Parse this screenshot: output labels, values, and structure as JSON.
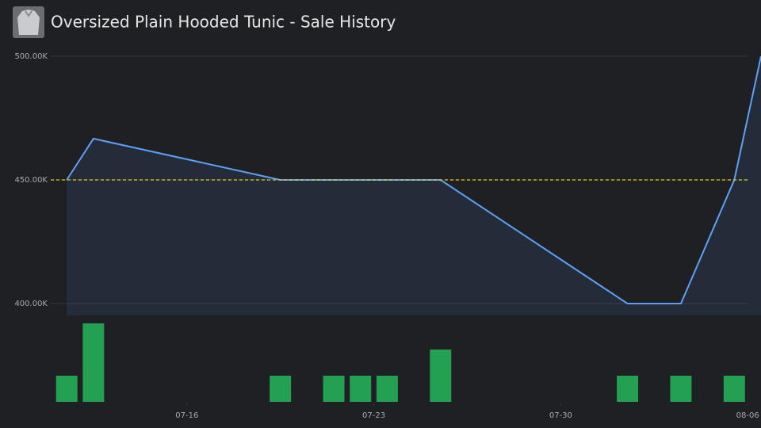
{
  "chart_data": {
    "type": "line",
    "title": "Oversized Plain Hooded Tunic - Sale History",
    "xlim": [
      10.9,
      37.5
    ],
    "xticks": [
      {
        "value": 16,
        "label": "07-16"
      },
      {
        "value": 23,
        "label": "07-23"
      },
      {
        "value": 30,
        "label": "07-30"
      },
      {
        "value": 37,
        "label": "08-06"
      }
    ],
    "ylim": [
      395200,
      500000
    ],
    "yticks": [
      {
        "value": 400000,
        "label": "400.00K"
      },
      {
        "value": 450000,
        "label": "450.00K"
      },
      {
        "value": 500000,
        "label": "500.00K"
      }
    ],
    "y2lim": [
      0,
      3
    ],
    "grid": true,
    "reference_line": {
      "value": 450000,
      "color": "#e6c619"
    },
    "series": [
      {
        "type": "line",
        "color": "#5fa0f5",
        "x": [
          11.5,
          12.5,
          19.5,
          25.5,
          32.5,
          34.5,
          36.5,
          37.5
        ],
        "values": [
          450000,
          466700,
          450000,
          450000,
          400000,
          400000,
          450000,
          500000
        ]
      },
      {
        "type": "bar",
        "axis": "y2",
        "color": "#23a052",
        "x": [
          11.5,
          12.5,
          19.5,
          21.5,
          22.5,
          23.5,
          25.5,
          32.5,
          34.5,
          36.5
        ],
        "values": [
          1,
          3,
          1,
          1,
          1,
          1,
          2,
          1,
          1,
          1
        ]
      }
    ]
  }
}
